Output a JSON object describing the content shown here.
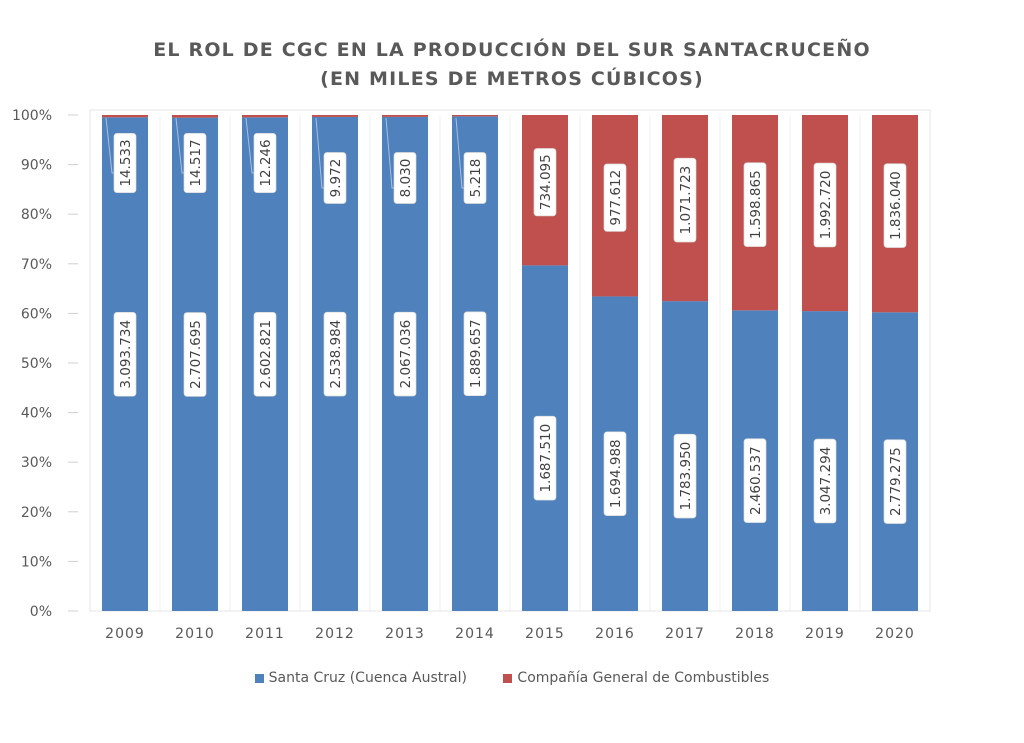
{
  "chart_data": {
    "type": "bar",
    "stacked": "percent",
    "title": "EL ROL DE CGC EN LA PRODUCCIÓN DEL SUR SANTACRUCEÑO",
    "subtitle": "(EN MILES DE METROS CÚBICOS)",
    "xlabel": "",
    "ylabel": "",
    "ylim": [
      0,
      100
    ],
    "yticks": [
      "0%",
      "10%",
      "20%",
      "30%",
      "40%",
      "50%",
      "60%",
      "70%",
      "80%",
      "90%",
      "100%"
    ],
    "grid": false,
    "legend_position": "bottom",
    "categories": [
      "2009",
      "2010",
      "2011",
      "2012",
      "2013",
      "2014",
      "2015",
      "2016",
      "2017",
      "2018",
      "2019",
      "2020"
    ],
    "series": [
      {
        "name": "Santa Cruz (Cuenca Austral)",
        "color": "#4f81bd",
        "values": [
          3093734,
          2707695,
          2602821,
          2538984,
          2067036,
          1889657,
          1687510,
          1694988,
          1783950,
          2460537,
          3047294,
          2779275
        ],
        "labels": [
          "3.093.734",
          "2.707.695",
          "2.602.821",
          "2.538.984",
          "2.067.036",
          "1.889.657",
          "1.687.510",
          "1.694.988",
          "1.783.950",
          "2.460.537",
          "3.047.294",
          "2.779.275"
        ]
      },
      {
        "name": "Compañía General de Combustibles",
        "color": "#c0504d",
        "values": [
          14533,
          14517,
          12246,
          9972,
          8030,
          5218,
          734095,
          977612,
          1071723,
          1598865,
          1992720,
          1836040
        ],
        "labels": [
          "14.533",
          "14.517",
          "12.246",
          "9.972",
          "8.030",
          "5.218",
          "734.095",
          "977.612",
          "1.071.723",
          "1.598.865",
          "1.992.720",
          "1.836.040"
        ]
      }
    ]
  }
}
